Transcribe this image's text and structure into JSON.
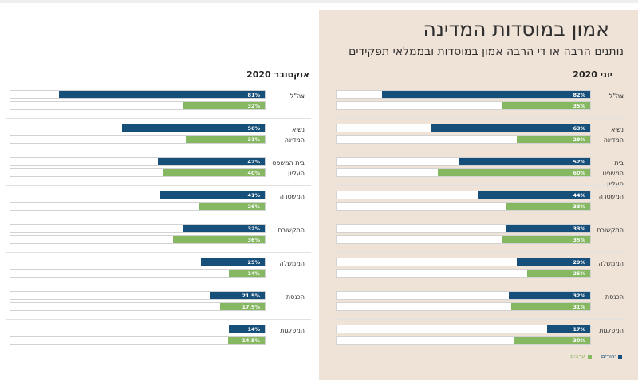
{
  "header": {
    "title": "אמון במוסדות המדינה",
    "subtitle": "נותנים הרבה או די הרבה אמון במוסדות ובממלאי תפקידים"
  },
  "legend": {
    "items": [
      {
        "label": "יהודים",
        "color": "#164f7a"
      },
      {
        "label": "ערבים",
        "color": "#86b862"
      }
    ]
  },
  "chart_data": [
    {
      "type": "bar",
      "title": "יוני 2020",
      "categories": [
        "צה\"ל",
        "נשיא המדינה",
        "בית המשפט העליון",
        "המשטרה",
        "התקשורת",
        "הממשלה",
        "הכנסת",
        "המפלגות"
      ],
      "series": [
        {
          "name": "יהודים",
          "color": "#164f7a",
          "values": [
            82,
            63,
            52,
            44,
            33,
            29,
            32,
            17
          ],
          "labels": [
            "82%",
            "63%",
            "52%",
            "44%",
            "33%",
            "29%",
            "32%",
            "17%"
          ]
        },
        {
          "name": "ערבים",
          "color": "#86b862",
          "values": [
            35,
            29,
            60,
            33,
            35,
            25,
            31,
            30
          ],
          "labels": [
            "35%",
            "29%",
            "60%",
            "33%",
            "35%",
            "25%",
            "31%",
            "30%"
          ]
        }
      ],
      "xlim": [
        0,
        100
      ]
    },
    {
      "type": "bar",
      "title": "אוקטובר 2020",
      "categories": [
        "צה\"ל",
        "נשיא המדינה",
        "בית המשפט העליון",
        "המשטרה",
        "התקשורת",
        "הממשלה",
        "הכנסת",
        "המפלגות"
      ],
      "series": [
        {
          "name": "יהודים",
          "color": "#164f7a",
          "values": [
            81,
            56,
            42,
            41,
            32,
            25,
            21.5,
            14
          ],
          "labels": [
            "81%",
            "56%",
            "42%",
            "41%",
            "32%",
            "25%",
            "21.5%",
            "14%"
          ]
        },
        {
          "name": "ערבים",
          "color": "#86b862",
          "values": [
            32,
            31,
            40,
            26,
            36,
            14,
            17.5,
            14.5
          ],
          "labels": [
            "32%",
            "31%",
            "40%",
            "26%",
            "36%",
            "14%",
            "17.5%",
            "14.5%"
          ]
        }
      ],
      "xlim": [
        0,
        100
      ]
    }
  ]
}
